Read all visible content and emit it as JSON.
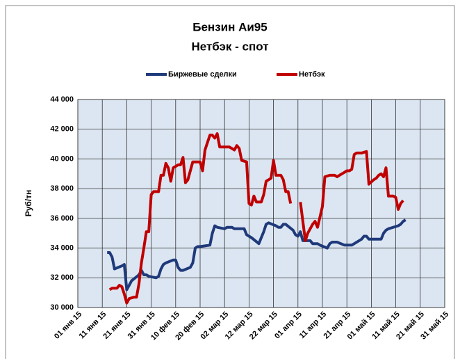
{
  "chart_data": {
    "type": "line",
    "title": "Бензин Аи95",
    "subtitle": "Нетбэк - спот",
    "y_label": "Руб/тн",
    "legend": "top",
    "grid": true,
    "plot_background": "#dce6f2",
    "ylim": [
      30000,
      44000
    ],
    "yticks": [
      {
        "value": 30000,
        "label": "30 000"
      },
      {
        "value": 32000,
        "label": "32 000"
      },
      {
        "value": 34000,
        "label": "34 000"
      },
      {
        "value": 36000,
        "label": "36 000"
      },
      {
        "value": 38000,
        "label": "38 000"
      },
      {
        "value": 40000,
        "label": "40 000"
      },
      {
        "value": 42000,
        "label": "42 000"
      },
      {
        "value": 44000,
        "label": "44 000"
      }
    ],
    "xlim": [
      "2015-01-01",
      "2015-05-31"
    ],
    "xticks": [
      {
        "value": "2015-01-01",
        "label": "01 янв 15"
      },
      {
        "value": "2015-01-11",
        "label": "11 янв 15"
      },
      {
        "value": "2015-01-21",
        "label": "21 янв 15"
      },
      {
        "value": "2015-01-31",
        "label": "31 янв 15"
      },
      {
        "value": "2015-02-10",
        "label": "10 фев 15"
      },
      {
        "value": "2015-02-20",
        "label": "20 фев 15"
      },
      {
        "value": "2015-03-02",
        "label": "02 мар 15"
      },
      {
        "value": "2015-03-12",
        "label": "12 мар 15"
      },
      {
        "value": "2015-03-22",
        "label": "22 мар 15"
      },
      {
        "value": "2015-04-01",
        "label": "01 апр 15"
      },
      {
        "value": "2015-04-11",
        "label": "11 апр 15"
      },
      {
        "value": "2015-04-21",
        "label": "21 апр 15"
      },
      {
        "value": "2015-05-01",
        "label": "01 май 15"
      },
      {
        "value": "2015-05-11",
        "label": "11 май 15"
      },
      {
        "value": "2015-05-21",
        "label": "21 май 15"
      },
      {
        "value": "2015-05-31",
        "label": "31 май 15"
      }
    ],
    "series": [
      {
        "name": "Биржевые сделки",
        "color": "#1f3a7a",
        "x": [
          "2015-01-13",
          "2015-01-14",
          "2015-01-15",
          "2015-01-16",
          "2015-01-19",
          "2015-01-20",
          "2015-01-21",
          "2015-01-22",
          "2015-01-23",
          "2015-01-26",
          "2015-01-27",
          "2015-01-28",
          "2015-01-29",
          "2015-01-30",
          "2015-02-02",
          "2015-02-03",
          "2015-02-04",
          "2015-02-05",
          "2015-02-06",
          "2015-02-09",
          "2015-02-10",
          "2015-02-11",
          "2015-02-12",
          "2015-02-13",
          "2015-02-16",
          "2015-02-17",
          "2015-02-18",
          "2015-02-19",
          "2015-02-20",
          "2015-02-24",
          "2015-02-25",
          "2015-02-26",
          "2015-02-27",
          "2015-03-02",
          "2015-03-03",
          "2015-03-04",
          "2015-03-05",
          "2015-03-06",
          "2015-03-10",
          "2015-03-11",
          "2015-03-12",
          "2015-03-13",
          "2015-03-16",
          "2015-03-17",
          "2015-03-18",
          "2015-03-19",
          "2015-03-20",
          "2015-03-23",
          "2015-03-24",
          "2015-03-25",
          "2015-03-26",
          "2015-03-27",
          "2015-03-30",
          "2015-03-31",
          "2015-04-01",
          "2015-04-02",
          "2015-04-03",
          "2015-04-06",
          "2015-04-07",
          "2015-04-08",
          "2015-04-09",
          "2015-04-10",
          "2015-04-13",
          "2015-04-14",
          "2015-04-15",
          "2015-04-16",
          "2015-04-17",
          "2015-04-20",
          "2015-04-21",
          "2015-04-22",
          "2015-04-23",
          "2015-04-24",
          "2015-04-27",
          "2015-04-28",
          "2015-04-29",
          "2015-04-30",
          "2015-05-05",
          "2015-05-06",
          "2015-05-07",
          "2015-05-08",
          "2015-05-12",
          "2015-05-13",
          "2015-05-14",
          "2015-05-15"
        ],
        "values": [
          33700,
          33700,
          33400,
          32600,
          32800,
          32900,
          31200,
          31500,
          31800,
          32200,
          32500,
          32200,
          32200,
          32100,
          32000,
          32100,
          32600,
          32900,
          33000,
          33200,
          33200,
          32700,
          32500,
          32500,
          32700,
          33000,
          34000,
          34100,
          34100,
          34200,
          35000,
          35500,
          35400,
          35300,
          35400,
          35400,
          35400,
          35300,
          35300,
          34900,
          34800,
          34700,
          34300,
          34700,
          35100,
          35600,
          35700,
          35500,
          35400,
          35400,
          35600,
          35600,
          35200,
          34900,
          34800,
          35100,
          34500,
          34500,
          34300,
          34300,
          34300,
          34200,
          34000,
          34300,
          34400,
          34400,
          34400,
          34200,
          34200,
          34200,
          34200,
          34300,
          34600,
          34800,
          34800,
          34600,
          34600,
          35000,
          35200,
          35300,
          35500,
          35600,
          35800,
          35900
        ]
      },
      {
        "name": "Нетбэк",
        "color": "#c00000",
        "x": [
          "2015-01-14",
          "2015-01-15",
          "2015-01-17",
          "2015-01-18",
          "2015-01-19",
          "2015-01-20",
          "2015-01-21",
          "2015-01-22",
          "2015-01-24",
          "2015-01-25",
          "2015-01-26",
          "2015-01-27",
          "2015-01-28",
          "2015-01-29",
          "2015-01-30",
          "2015-01-31",
          "2015-02-01",
          "2015-02-03",
          "2015-02-04",
          "2015-02-05",
          "2015-02-06",
          "2015-02-07",
          "2015-02-08",
          "2015-02-09",
          "2015-02-11",
          "2015-02-12",
          "2015-02-13",
          "2015-02-14",
          "2015-02-15",
          "2015-02-17",
          "2015-02-19",
          "2015-02-20",
          "2015-02-21",
          "2015-02-22",
          "2015-02-24",
          "2015-02-25",
          "2015-02-26",
          "2015-02-27",
          "2015-02-28",
          "2015-03-02",
          "2015-03-04",
          "2015-03-06",
          "2015-03-07",
          "2015-03-08",
          "2015-03-09",
          "2015-03-11",
          "2015-03-12",
          "2015-03-13",
          "2015-03-14",
          "2015-03-15",
          "2015-03-17",
          "2015-03-18",
          "2015-03-19",
          "2015-03-21",
          "2015-03-22",
          "2015-03-23",
          "2015-03-25",
          "2015-03-26",
          "2015-03-27",
          "2015-03-28",
          "2015-03-29",
          "2015-03-31",
          "2015-04-02",
          "2015-04-04",
          "2015-04-05",
          "2015-04-07",
          "2015-04-08",
          "2015-04-09",
          "2015-04-11",
          "2015-04-12",
          "2015-04-14",
          "2015-04-16",
          "2015-04-17",
          "2015-04-18",
          "2015-04-20",
          "2015-04-21",
          "2015-04-22",
          "2015-04-23",
          "2015-04-24",
          "2015-04-25",
          "2015-04-27",
          "2015-04-29",
          "2015-04-30",
          "2015-05-02",
          "2015-05-03",
          "2015-05-04",
          "2015-05-05",
          "2015-05-06",
          "2015-05-07",
          "2015-05-08",
          "2015-05-10",
          "2015-05-11",
          "2015-05-12",
          "2015-05-13",
          "2015-05-14"
        ],
        "values": [
          31200,
          31300,
          31300,
          31500,
          31400,
          30900,
          30300,
          30600,
          30700,
          30700,
          31600,
          33000,
          34000,
          35100,
          35100,
          37600,
          37800,
          37800,
          38900,
          38900,
          39700,
          39400,
          38500,
          39400,
          39600,
          39600,
          40100,
          38400,
          38600,
          39800,
          39800,
          39800,
          39200,
          40600,
          41600,
          41600,
          41400,
          41700,
          40800,
          40800,
          40800,
          40600,
          40900,
          40700,
          39900,
          39800,
          37000,
          36900,
          37500,
          37100,
          37100,
          37600,
          38500,
          38700,
          39900,
          38900,
          38900,
          38600,
          37800,
          37800,
          37000,
          null,
          37100,
          34500,
          35000,
          35600,
          35800,
          35400,
          36800,
          38800,
          38900,
          38900,
          38800,
          38900,
          39100,
          39200,
          39200,
          39300,
          40300,
          40400,
          40400,
          40500,
          38300,
          38600,
          38700,
          38900,
          39000,
          38800,
          39400,
          37500,
          37500,
          37400,
          36600,
          37000,
          37200
        ]
      }
    ]
  }
}
